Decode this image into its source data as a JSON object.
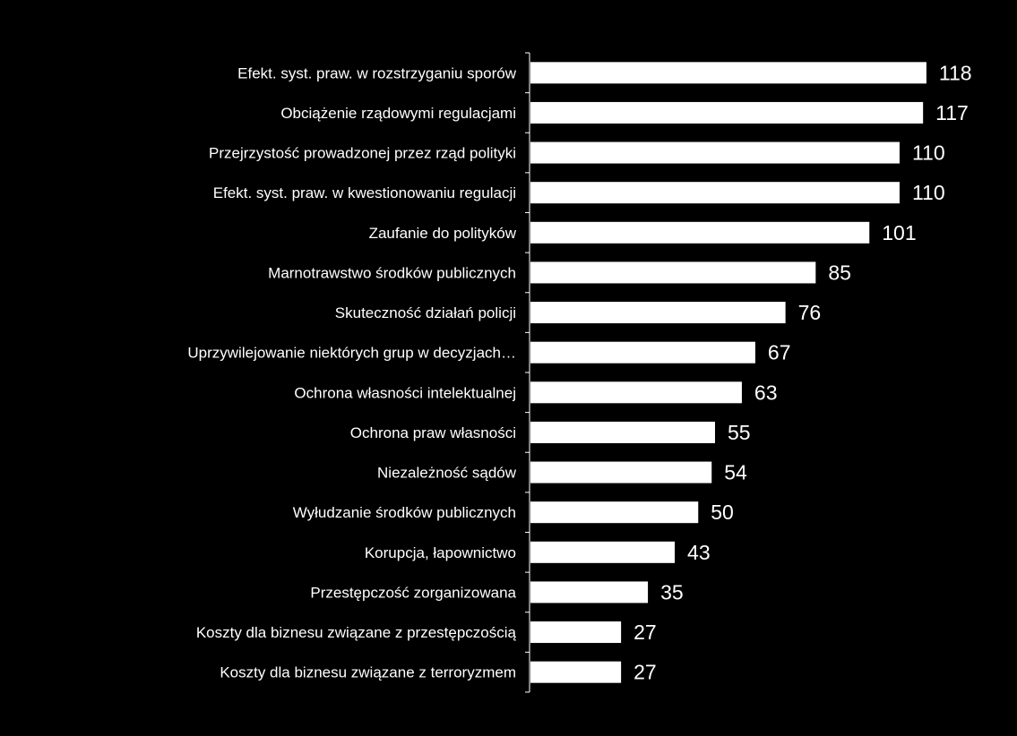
{
  "chart_data": {
    "type": "bar",
    "orientation": "horizontal",
    "title": "",
    "xlabel": "",
    "ylabel": "",
    "categories": [
      "Efekt. syst. praw. w rozstrzyganiu sporów",
      "Obciążenie rządowymi regulacjami",
      "Przejrzystość prowadzonej przez rząd polityki",
      "Efekt. syst. praw. w kwestionowaniu regulacji",
      "Zaufanie do polityków",
      "Marnotrawstwo środków publicznych",
      "Skuteczność działań policji",
      "Uprzywilejowanie niektórych grup w decyzjach…",
      "Ochrona własności intelektualnej",
      "Ochrona praw własności",
      "Niezależność sądów",
      "Wyłudzanie środków publicznych",
      "Korupcja, łapownictwo",
      "Przestępczość zorganizowana",
      "Koszty dla biznesu związane z przestępczością",
      "Koszty dla biznesu związane z terroryzmem"
    ],
    "values": [
      118,
      117,
      110,
      110,
      101,
      85,
      76,
      67,
      63,
      55,
      54,
      50,
      43,
      35,
      27,
      27
    ],
    "value_labels": [
      "118",
      "117",
      "110",
      "110",
      "101",
      "85",
      "76",
      "67",
      "63",
      "55",
      "54",
      "50",
      "43",
      "35",
      "27",
      "27"
    ],
    "xlim": [
      0,
      120
    ],
    "grid": false,
    "legend": "none",
    "colors": {
      "background": "#000000",
      "bar": "#ffffff",
      "text": "#ffffff",
      "axis": "#ffffff"
    }
  }
}
